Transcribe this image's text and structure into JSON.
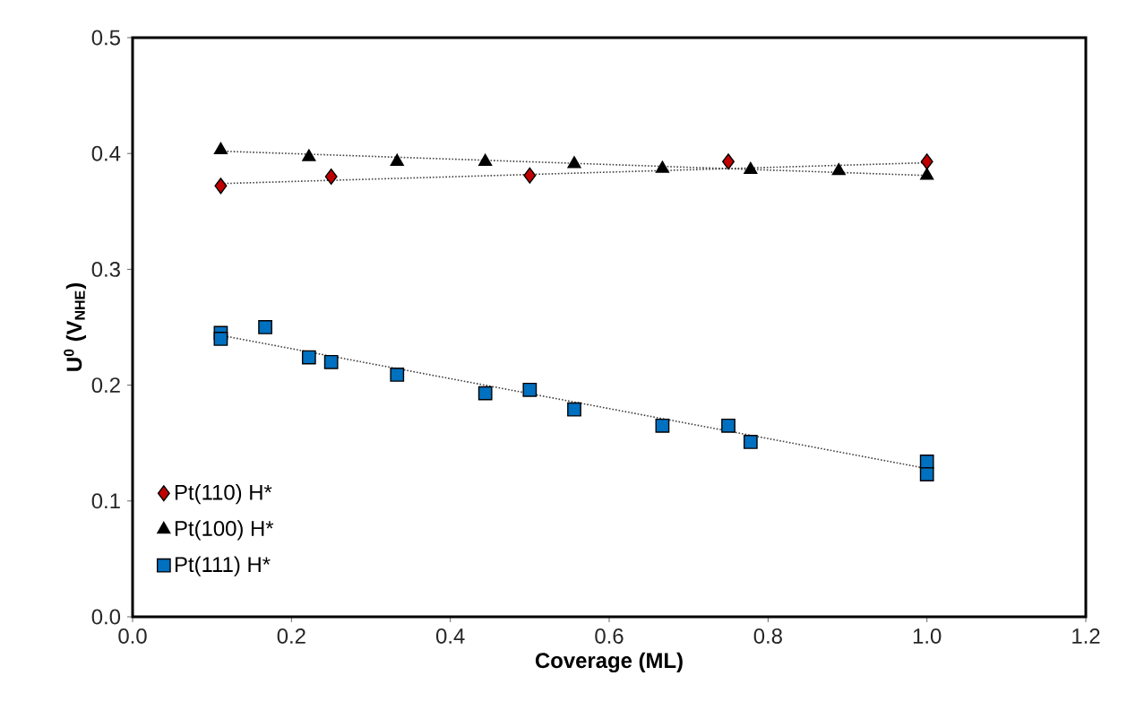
{
  "chart_data": {
    "type": "scatter",
    "xlabel": "Coverage (ML)",
    "ylabel": "U$^{0}$ (V$_{NHE}$)",
    "xlim": [
      0,
      1.2
    ],
    "ylim": [
      0,
      0.5
    ],
    "xticks": [
      {
        "value": 0,
        "label": "0.0"
      },
      {
        "value": 0.2,
        "label": "0.2"
      },
      {
        "value": 0.4,
        "label": "0.4"
      },
      {
        "value": 0.6,
        "label": "0.6"
      },
      {
        "value": 0.8,
        "label": "0.8"
      },
      {
        "value": 1.0,
        "label": "1.0"
      },
      {
        "value": 1.2,
        "label": "1.2"
      }
    ],
    "yticks": [
      {
        "value": 0,
        "label": "0.0"
      },
      {
        "value": 0.1,
        "label": "0.1"
      },
      {
        "value": 0.2,
        "label": "0.2"
      },
      {
        "value": 0.3,
        "label": "0.3"
      },
      {
        "value": 0.4,
        "label": "0.4"
      },
      {
        "value": 0.5,
        "label": "0.5"
      }
    ],
    "grid": false,
    "legend": "bottom left",
    "series": [
      {
        "name": "Pt(110) H*",
        "color": "#c00000",
        "marker": "diamond",
        "x": [
          0.111,
          0.25,
          0.5,
          0.75,
          1.0
        ],
        "values": [
          0.372,
          0.38,
          0.381,
          0.393,
          0.393
        ]
      },
      {
        "name": "Pt(100) H*",
        "color": "#000000",
        "marker": "triangle",
        "x": [
          0.111,
          0.222,
          0.333,
          0.444,
          0.556,
          0.667,
          0.778,
          0.889,
          1.0
        ],
        "values": [
          0.403,
          0.397,
          0.393,
          0.393,
          0.391,
          0.387,
          0.386,
          0.385,
          0.381
        ]
      },
      {
        "name": "Pt(111) H*",
        "color": "#0070c0",
        "marker": "square",
        "x": [
          0.111,
          0.111,
          0.167,
          0.222,
          0.25,
          0.333,
          0.444,
          0.5,
          0.556,
          0.667,
          0.75,
          0.778,
          1.0,
          1.0
        ],
        "values": [
          0.245,
          0.24,
          0.25,
          0.224,
          0.22,
          0.209,
          0.193,
          0.196,
          0.179,
          0.165,
          0.165,
          0.151,
          0.134,
          0.123
        ]
      },
      {
        "type": "line",
        "color": "#404040",
        "marker": "none",
        "line_style": "dotted",
        "x": [
          0.111,
          1.0
        ],
        "values": [
          0.374,
          0.392
        ]
      },
      {
        "type": "line",
        "color": "#404040",
        "marker": "none",
        "line_style": "dotted",
        "x": [
          0.111,
          1.0
        ],
        "values": [
          0.402,
          0.381
        ]
      },
      {
        "type": "line",
        "color": "#404040",
        "marker": "none",
        "line_style": "dotted",
        "x": [
          0.111,
          1.0
        ],
        "values": [
          0.243,
          0.128
        ]
      }
    ]
  }
}
